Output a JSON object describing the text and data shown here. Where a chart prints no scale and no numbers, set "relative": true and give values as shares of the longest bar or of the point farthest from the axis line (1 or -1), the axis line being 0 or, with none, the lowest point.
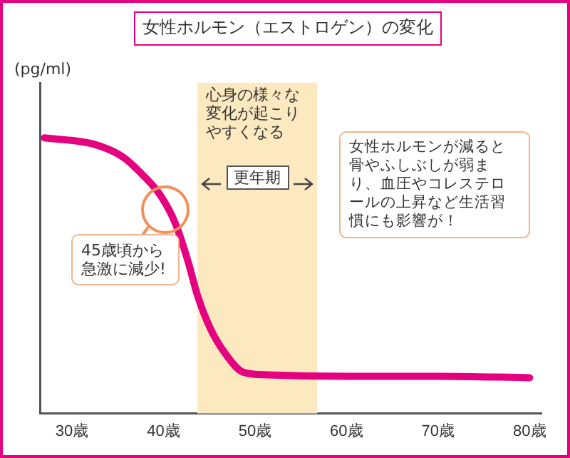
{
  "chart_data": {
    "type": "line",
    "title": "女性ホルモン（エストロゲン）の変化",
    "ylabel": "(pg/ml)",
    "relative": true,
    "x": [
      27,
      32.4,
      35.6,
      37.6,
      39.7,
      41.3,
      42.7,
      43.7,
      45.1,
      46.7,
      48.7,
      51.4,
      60,
      70,
      80
    ],
    "series": [
      {
        "color": "#e4007f",
        "values": [
          1,
          0.977,
          0.93,
          0.87,
          0.79,
          0.69,
          0.55,
          0.43,
          0.31,
          0.22,
          0.15,
          0.14,
          0.135,
          0.135,
          0.13
        ]
      }
    ],
    "xlim": [
      26.5,
      81.3
    ],
    "xticks": [
      {
        "value": 30,
        "label": "30歳"
      },
      {
        "value": 40,
        "label": "40歳"
      },
      {
        "value": 50,
        "label": "50歳"
      },
      {
        "value": 60,
        "label": "60歳"
      },
      {
        "value": 70,
        "label": "70歳"
      },
      {
        "value": 80,
        "label": "80歳"
      }
    ],
    "bands": [
      {
        "axis": "x",
        "from": 43.7,
        "to": 56.8,
        "label": "更年期",
        "color": "#fde9c0"
      }
    ],
    "annotations": [
      "心身の様々な変化が起こりやすくなる",
      "45歳頃から急激に減少!",
      "女性ホルモンが減ると骨やふしぶしが弱まり、血圧やコレステロールの上昇など生活習慣にも影響が！"
    ],
    "grid": false,
    "legend": false,
    "marker": "none",
    "line_style": "solid"
  }
}
